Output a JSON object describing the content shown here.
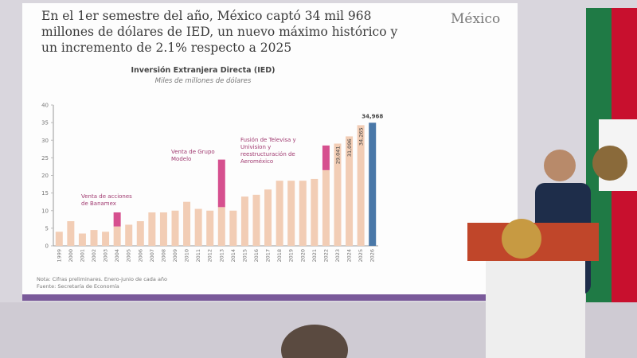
{
  "chart_data": {
    "type": "bar",
    "stacked": true,
    "headline": "En el 1er semestre del año, México captó 34 mil 968 millones de dólares de IED, un nuevo máximo histórico y un incremento de 2.1% respecto a 2025",
    "logo": "México",
    "title": "Inversión Extranjera Directa (IED)",
    "subtitle": "Miles de millones de dólares",
    "categories": [
      "1999",
      "2000",
      "2001",
      "2002",
      "2003",
      "2004",
      "2005",
      "2006",
      "2007",
      "2008",
      "2009",
      "2010",
      "2011",
      "2012",
      "2013",
      "2014",
      "2015",
      "2016",
      "2017",
      "2018",
      "2019",
      "2020",
      "2021",
      "2022",
      "2023",
      "2024",
      "2025",
      "2026"
    ],
    "series": [
      {
        "color": "#f2cdb5",
        "values": [
          4,
          7,
          3.5,
          4.5,
          4,
          5.5,
          6,
          7,
          9.5,
          9.5,
          10,
          12.5,
          10.5,
          10,
          11,
          10,
          14,
          14.5,
          16,
          18.5,
          18.5,
          18.5,
          19,
          21.5,
          29.041,
          31.096,
          34.265,
          null
        ],
        "value_labels": [
          null,
          null,
          null,
          null,
          null,
          null,
          null,
          null,
          null,
          null,
          null,
          null,
          null,
          null,
          null,
          null,
          null,
          null,
          null,
          null,
          null,
          null,
          null,
          null,
          "29,041",
          "31,096",
          "34,265",
          null
        ]
      },
      {
        "color": "#d6508f",
        "values": [
          null,
          null,
          null,
          null,
          null,
          4,
          null,
          null,
          null,
          null,
          null,
          null,
          null,
          null,
          13.5,
          null,
          null,
          null,
          null,
          null,
          null,
          null,
          null,
          7,
          null,
          null,
          null,
          null
        ]
      },
      {
        "color": "#4a78a8",
        "values": [
          null,
          null,
          null,
          null,
          null,
          null,
          null,
          null,
          null,
          null,
          null,
          null,
          null,
          null,
          null,
          null,
          null,
          null,
          null,
          null,
          null,
          null,
          null,
          null,
          null,
          null,
          null,
          34.968
        ],
        "value_labels": [
          null,
          null,
          null,
          null,
          null,
          null,
          null,
          null,
          null,
          null,
          null,
          null,
          null,
          null,
          null,
          null,
          null,
          null,
          null,
          null,
          null,
          null,
          null,
          null,
          null,
          null,
          null,
          "34,968"
        ]
      }
    ],
    "ylim": [
      0,
      40
    ],
    "yticks": [
      0,
      5,
      10,
      15,
      20,
      25,
      30,
      35,
      40
    ],
    "grid": false,
    "annotations": [
      "Venta de acciones de Banamex",
      "Venta de Grupo Modelo",
      "Fusión de Televisa y Univision y reestructuración de Aeroméxico"
    ],
    "notes": [
      "Nota: Cifras preliminares. Enero-junio de cada año",
      "Fuente: Secretaría de Economía"
    ]
  }
}
